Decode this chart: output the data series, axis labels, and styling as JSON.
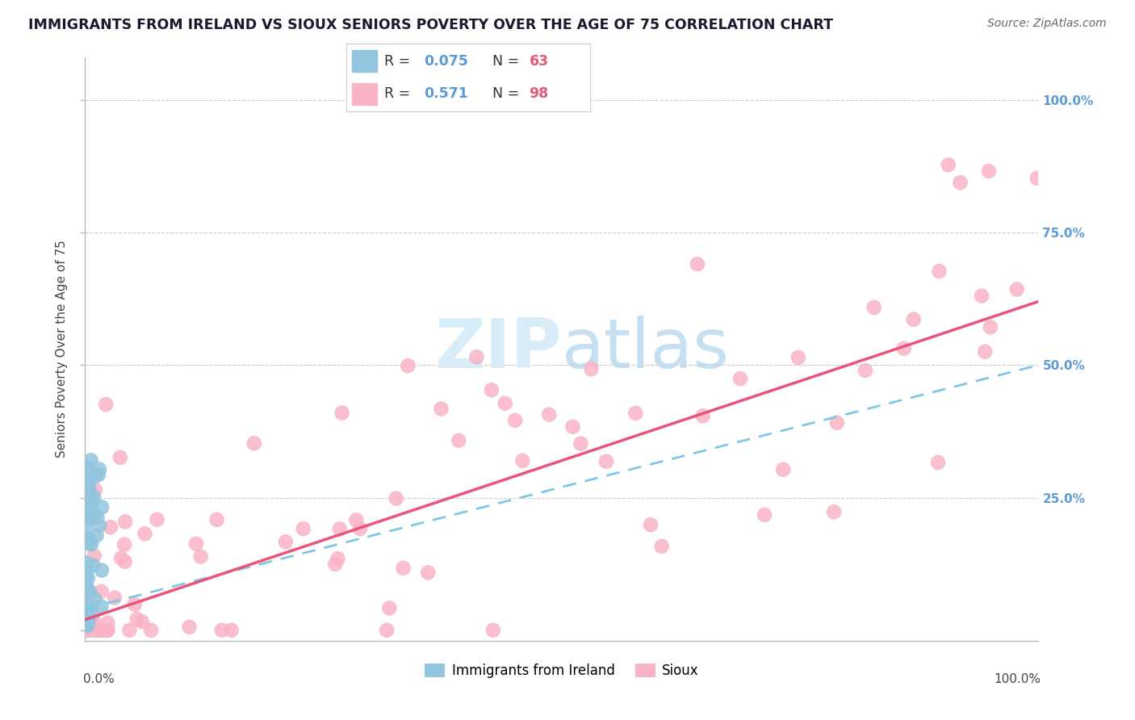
{
  "title": "IMMIGRANTS FROM IRELAND VS SIOUX SENIORS POVERTY OVER THE AGE OF 75 CORRELATION CHART",
  "source": "Source: ZipAtlas.com",
  "ylabel": "Seniors Poverty Over the Age of 75",
  "xlim": [
    0.0,
    1.0
  ],
  "ylim": [
    -0.02,
    1.08
  ],
  "color_ireland": "#92c5de",
  "color_sioux": "#f9b4c6",
  "line_ireland_color": "#7ec8e3",
  "line_sioux_color": "#e8547a",
  "background_color": "#ffffff",
  "grid_color": "#cccccc",
  "watermark_color": "#d8edf8",
  "r_ireland": 0.075,
  "n_ireland": 63,
  "r_sioux": 0.571,
  "n_sioux": 98,
  "ireland_line_start_y": 0.04,
  "ireland_line_end_y": 0.5,
  "sioux_line_start_y": 0.02,
  "sioux_line_end_y": 0.62
}
